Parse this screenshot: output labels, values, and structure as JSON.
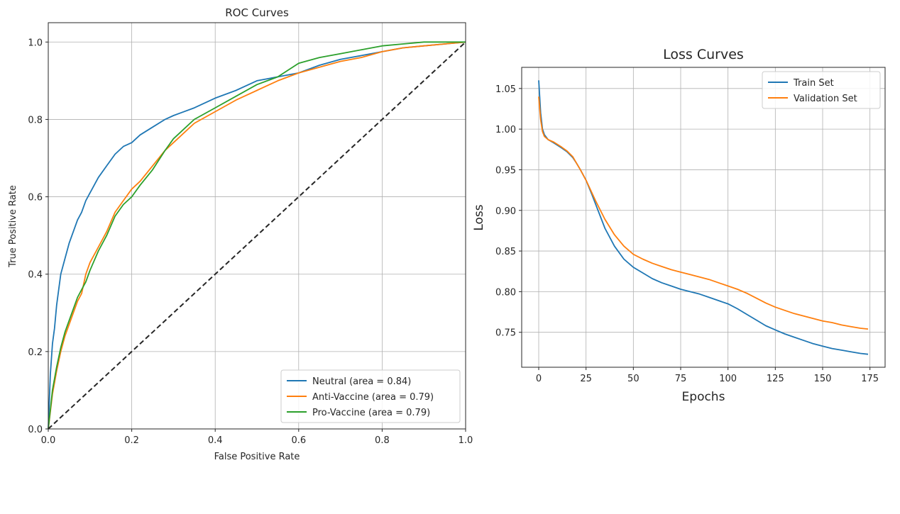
{
  "chart_data": [
    {
      "type": "line",
      "title": "ROC Curves",
      "xlabel": "False Positive Rate",
      "ylabel": "True Positive Rate",
      "xlim": [
        0.0,
        1.0
      ],
      "ylim": [
        0.0,
        1.05
      ],
      "xticks": [
        "0.0",
        "0.2",
        "0.4",
        "0.6",
        "0.8",
        "1.0"
      ],
      "yticks": [
        "0.0",
        "0.2",
        "0.4",
        "0.6",
        "0.8",
        "1.0"
      ],
      "grid": true,
      "legend_position": "lower-right",
      "series": [
        {
          "name": "Neutral (area = 0.84)",
          "color": "#1f77b4",
          "x": [
            0,
            0.005,
            0.01,
            0.015,
            0.02,
            0.03,
            0.04,
            0.05,
            0.06,
            0.07,
            0.08,
            0.09,
            0.1,
            0.12,
            0.14,
            0.16,
            0.18,
            0.2,
            0.22,
            0.25,
            0.28,
            0.3,
            0.35,
            0.4,
            0.45,
            0.5,
            0.55,
            0.6,
            0.65,
            0.7,
            0.75,
            0.8,
            0.85,
            0.9,
            0.95,
            1.0
          ],
          "y": [
            0,
            0.14,
            0.22,
            0.26,
            0.32,
            0.4,
            0.44,
            0.48,
            0.51,
            0.54,
            0.56,
            0.59,
            0.61,
            0.65,
            0.68,
            0.71,
            0.73,
            0.74,
            0.76,
            0.78,
            0.8,
            0.81,
            0.83,
            0.855,
            0.875,
            0.9,
            0.91,
            0.92,
            0.94,
            0.955,
            0.965,
            0.975,
            0.985,
            0.99,
            0.995,
            1.0
          ]
        },
        {
          "name": "Anti-Vaccine (area = 0.79)",
          "color": "#ff7f0e",
          "x": [
            0,
            0.01,
            0.02,
            0.03,
            0.04,
            0.05,
            0.06,
            0.07,
            0.08,
            0.09,
            0.1,
            0.12,
            0.14,
            0.16,
            0.18,
            0.2,
            0.22,
            0.25,
            0.28,
            0.3,
            0.35,
            0.4,
            0.45,
            0.5,
            0.55,
            0.6,
            0.65,
            0.7,
            0.75,
            0.8,
            0.85,
            0.9,
            0.95,
            1.0
          ],
          "y": [
            0,
            0.09,
            0.15,
            0.2,
            0.24,
            0.27,
            0.3,
            0.33,
            0.35,
            0.4,
            0.43,
            0.47,
            0.51,
            0.56,
            0.59,
            0.62,
            0.64,
            0.68,
            0.72,
            0.74,
            0.79,
            0.82,
            0.85,
            0.875,
            0.9,
            0.92,
            0.935,
            0.95,
            0.96,
            0.975,
            0.985,
            0.99,
            0.995,
            1.0
          ]
        },
        {
          "name": "Pro-Vaccine (area = 0.79)",
          "color": "#2ca02c",
          "x": [
            0,
            0.01,
            0.02,
            0.03,
            0.04,
            0.05,
            0.06,
            0.07,
            0.08,
            0.09,
            0.1,
            0.12,
            0.14,
            0.16,
            0.18,
            0.2,
            0.22,
            0.25,
            0.28,
            0.3,
            0.35,
            0.4,
            0.45,
            0.5,
            0.55,
            0.6,
            0.65,
            0.7,
            0.75,
            0.8,
            0.85,
            0.9,
            0.95,
            1.0
          ],
          "y": [
            0,
            0.1,
            0.16,
            0.21,
            0.25,
            0.28,
            0.31,
            0.34,
            0.36,
            0.38,
            0.41,
            0.46,
            0.5,
            0.55,
            0.58,
            0.6,
            0.63,
            0.67,
            0.72,
            0.75,
            0.8,
            0.83,
            0.86,
            0.89,
            0.91,
            0.945,
            0.96,
            0.97,
            0.98,
            0.99,
            0.995,
            1.0,
            1.0,
            1.0
          ]
        },
        {
          "name": "",
          "color": "#262626",
          "dashed": true,
          "x": [
            0,
            1
          ],
          "y": [
            0,
            1
          ]
        }
      ]
    },
    {
      "type": "line",
      "title": "Loss Curves",
      "xlabel": "Epochs",
      "ylabel": "Loss",
      "xlim": [
        -9,
        183
      ],
      "ylim": [
        0.707,
        1.076
      ],
      "xticks": [
        "0",
        "25",
        "50",
        "75",
        "100",
        "125",
        "150",
        "175"
      ],
      "yticks": [
        "0.75",
        "0.80",
        "0.85",
        "0.90",
        "0.95",
        "1.00",
        "1.05"
      ],
      "grid": true,
      "legend_position": "top-right",
      "series": [
        {
          "name": "Train Set",
          "color": "#1f77b4",
          "x": [
            0,
            1,
            2,
            3,
            5,
            8,
            12,
            15,
            18,
            20,
            22,
            25,
            28,
            30,
            35,
            40,
            45,
            50,
            55,
            60,
            65,
            70,
            75,
            80,
            85,
            90,
            95,
            100,
            105,
            110,
            115,
            120,
            125,
            130,
            135,
            140,
            145,
            150,
            155,
            160,
            165,
            170,
            174
          ],
          "y": [
            1.06,
            1.02,
            1.0,
            0.993,
            0.987,
            0.983,
            0.977,
            0.972,
            0.965,
            0.958,
            0.95,
            0.937,
            0.92,
            0.908,
            0.878,
            0.856,
            0.84,
            0.83,
            0.823,
            0.816,
            0.811,
            0.807,
            0.803,
            0.8,
            0.797,
            0.793,
            0.789,
            0.785,
            0.779,
            0.772,
            0.765,
            0.758,
            0.753,
            0.748,
            0.744,
            0.74,
            0.736,
            0.733,
            0.73,
            0.728,
            0.726,
            0.724,
            0.723
          ]
        },
        {
          "name": "Validation Set",
          "color": "#ff7f0e",
          "x": [
            0,
            1,
            2,
            3,
            5,
            8,
            12,
            15,
            18,
            20,
            22,
            25,
            28,
            30,
            35,
            40,
            45,
            50,
            55,
            60,
            65,
            70,
            75,
            80,
            85,
            90,
            95,
            100,
            105,
            110,
            115,
            120,
            125,
            130,
            135,
            140,
            145,
            150,
            155,
            160,
            165,
            170,
            174
          ],
          "y": [
            1.04,
            1.012,
            0.997,
            0.991,
            0.987,
            0.984,
            0.978,
            0.973,
            0.966,
            0.958,
            0.95,
            0.937,
            0.922,
            0.912,
            0.889,
            0.87,
            0.856,
            0.846,
            0.84,
            0.835,
            0.831,
            0.827,
            0.824,
            0.821,
            0.818,
            0.815,
            0.811,
            0.807,
            0.803,
            0.798,
            0.792,
            0.786,
            0.781,
            0.777,
            0.773,
            0.77,
            0.767,
            0.764,
            0.762,
            0.759,
            0.757,
            0.755,
            0.754
          ]
        }
      ]
    }
  ]
}
